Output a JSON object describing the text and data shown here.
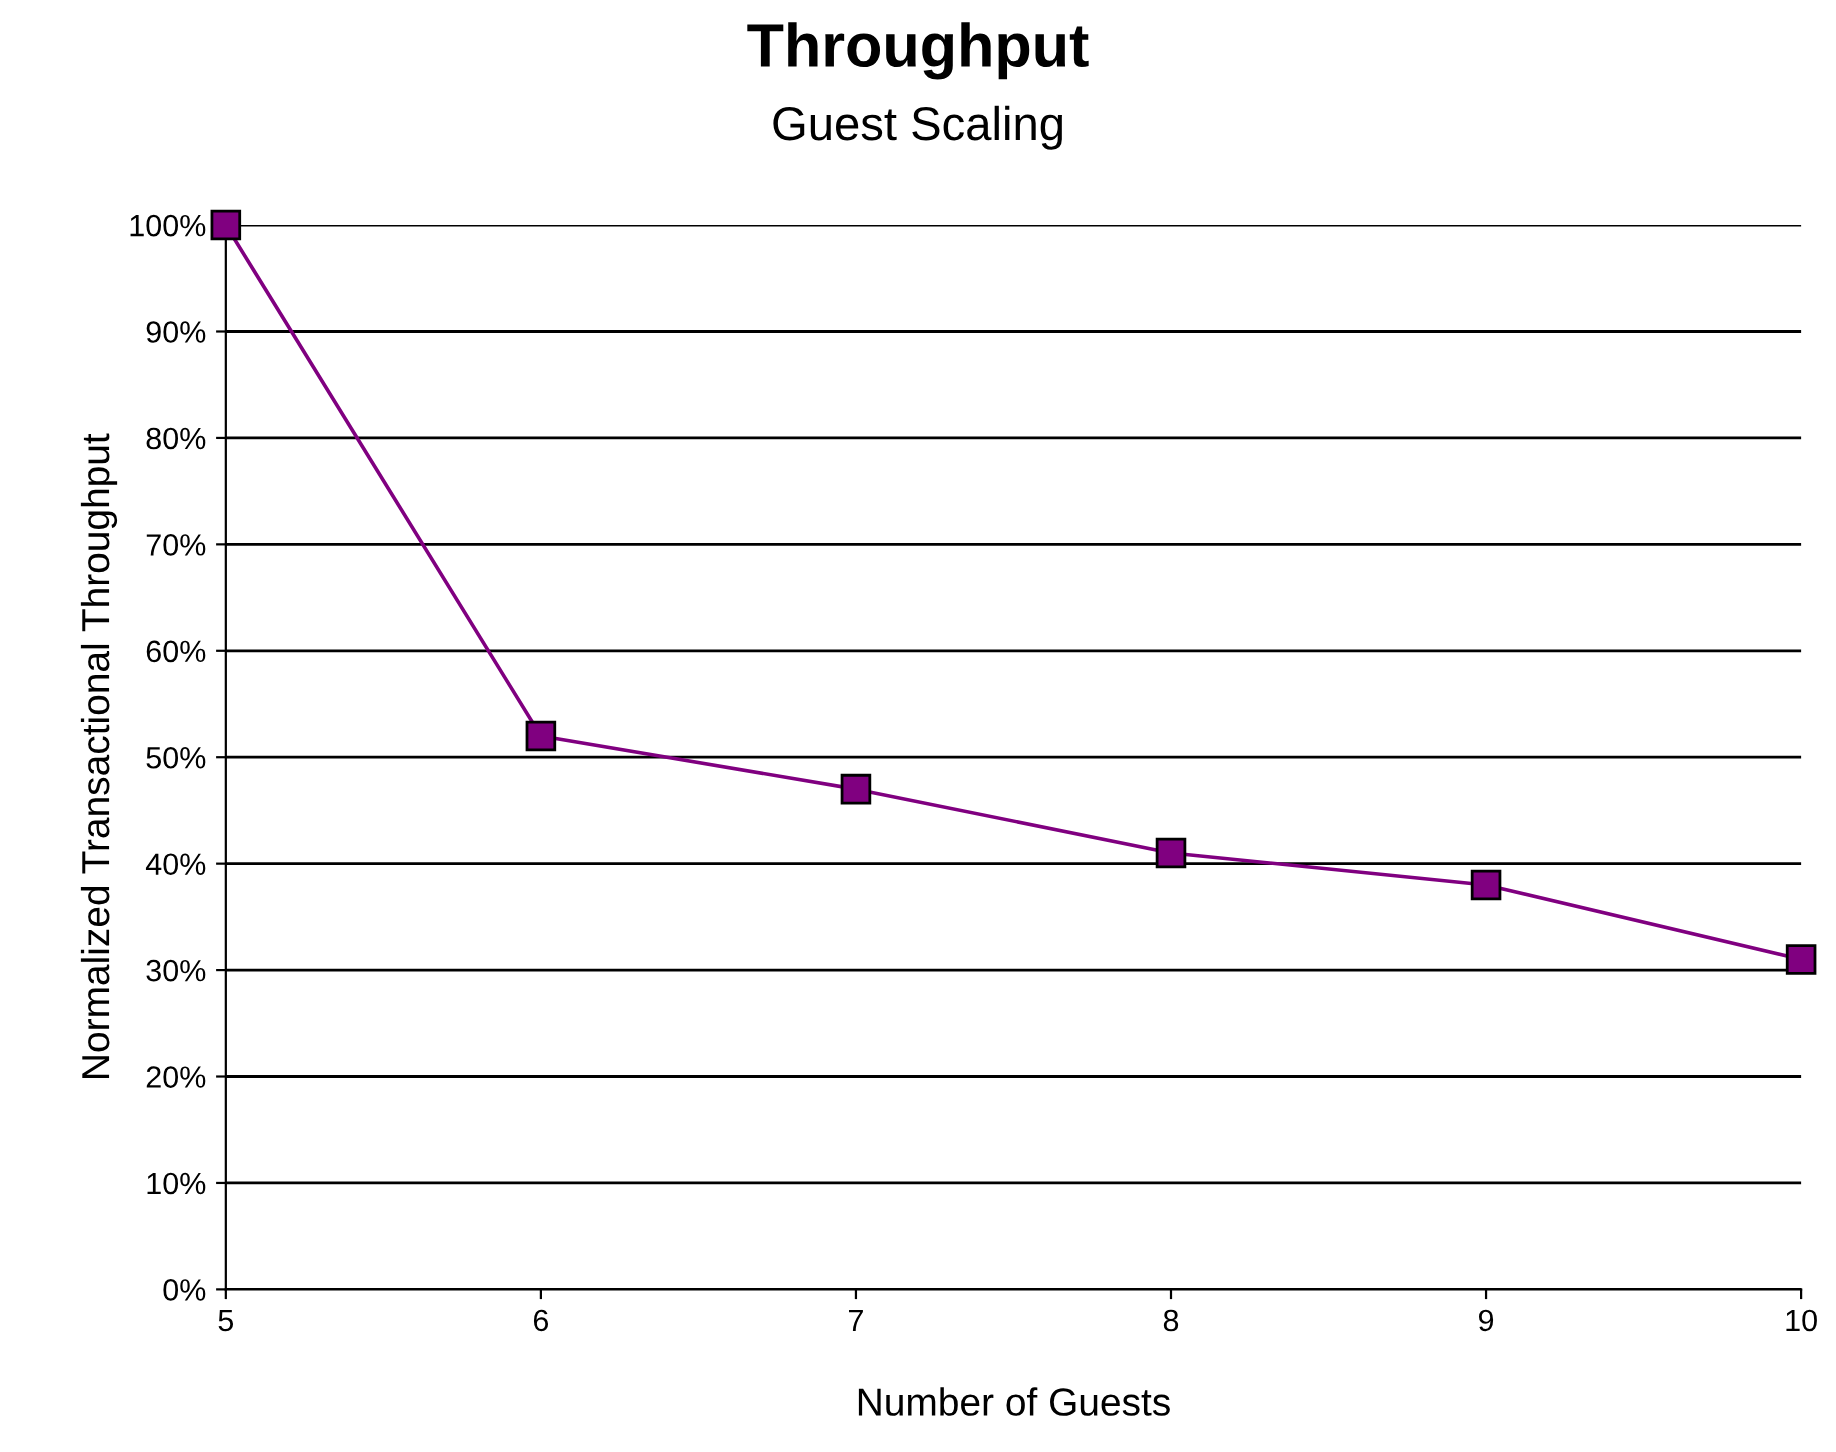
{
  "chart_data": {
    "type": "line",
    "title": "Throughput",
    "subtitle": "Guest Scaling",
    "xlabel": "Number of Guests",
    "ylabel": "Normalized Transactional Throughput",
    "x": [
      5,
      6,
      7,
      8,
      9,
      10
    ],
    "series": [
      {
        "color": "#800080",
        "values": [
          100,
          52,
          47,
          41,
          38,
          31
        ]
      }
    ],
    "xlim": [
      5,
      10
    ],
    "xticks": [
      5,
      6,
      7,
      8,
      9,
      10
    ],
    "ylim": [
      0,
      100
    ],
    "yticks": [
      {
        "value": 0,
        "label": "0%"
      },
      {
        "value": 10,
        "label": "10%"
      },
      {
        "value": 20,
        "label": "20%"
      },
      {
        "value": 30,
        "label": "30%"
      },
      {
        "value": 40,
        "label": "40%"
      },
      {
        "value": 50,
        "label": "50%"
      },
      {
        "value": 60,
        "label": "60%"
      },
      {
        "value": 70,
        "label": "70%"
      },
      {
        "value": 80,
        "label": "80%"
      },
      {
        "value": 90,
        "label": "90%"
      },
      {
        "value": 100,
        "label": "100%"
      }
    ],
    "grid": "y",
    "marker": "square",
    "line_style": "solid",
    "legend": false
  }
}
